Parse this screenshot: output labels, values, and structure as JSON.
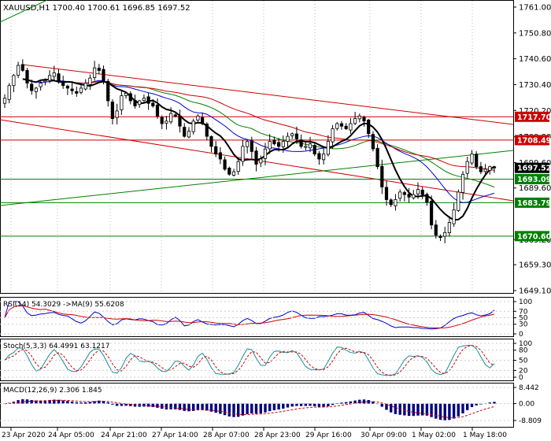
{
  "chart_data": {
    "type": "candlestick",
    "symbol_line": "XAUUSD,H1  1700.40 1700.61 1696.85 1697.52",
    "ohlc_current": {
      "open": 1700.4,
      "high": 1700.61,
      "low": 1696.85,
      "close": 1697.52
    },
    "price_axis": {
      "ylim": [
        1645,
        1765
      ],
      "ticks": [
        "1761.00",
        "1750.80",
        "1740.60",
        "1730.40",
        "1720.20",
        "1709.80",
        "1699.60",
        "1689.60",
        "1669.20",
        "1659.30",
        "1649.10"
      ],
      "tick_values": [
        1761.0,
        1750.8,
        1740.6,
        1730.4,
        1720.2,
        1709.8,
        1699.6,
        1689.6,
        1669.2,
        1659.3,
        1649.1
      ]
    },
    "price_labels": [
      {
        "text": "1717.70",
        "value": 1717.7,
        "color": "#cc0000"
      },
      {
        "text": "1708.49",
        "value": 1708.49,
        "color": "#cc0000"
      },
      {
        "text": "1697.52",
        "value": 1697.52,
        "color": "#000000"
      },
      {
        "text": "1693.09",
        "value": 1693.09,
        "color": "#008000"
      },
      {
        "text": "1683.79",
        "value": 1683.79,
        "color": "#008000"
      },
      {
        "text": "1670.60",
        "value": 1670.6,
        "color": "#008000"
      }
    ],
    "x_labels": [
      "23 Apr 2020",
      "24 Apr 05:00",
      "24 Apr 21:00",
      "27 Apr 14:00",
      "28 Apr 07:00",
      "28 Apr 23:00",
      "29 Apr 16:00",
      "30 Apr 09:00",
      "1 May 02:00",
      "1 May 18:00"
    ],
    "closes": [
      1725,
      1730,
      1734,
      1738,
      1736,
      1731,
      1728,
      1729,
      1731,
      1732,
      1734,
      1735,
      1732,
      1730,
      1729,
      1728,
      1727,
      1729,
      1731,
      1733,
      1737,
      1736,
      1732,
      1724,
      1717,
      1720,
      1726,
      1727,
      1724,
      1722,
      1724,
      1725,
      1723,
      1722,
      1718,
      1715,
      1716,
      1719,
      1718,
      1714,
      1710,
      1712,
      1716,
      1718,
      1715,
      1710,
      1706,
      1703,
      1701,
      1697,
      1695,
      1696,
      1700,
      1706,
      1708,
      1704,
      1699,
      1701,
      1705,
      1708,
      1707,
      1706,
      1708,
      1710,
      1711,
      1709,
      1706,
      1706,
      1707,
      1703,
      1701,
      1703,
      1708,
      1713,
      1715,
      1714,
      1713,
      1715,
      1717,
      1718,
      1716,
      1711,
      1705,
      1698,
      1690,
      1685,
      1683,
      1685,
      1688,
      1687,
      1686,
      1687,
      1689,
      1687,
      1684,
      1675,
      1671,
      1670,
      1672,
      1676,
      1681,
      1688,
      1695,
      1700,
      1703,
      1698,
      1696,
      1697,
      1698,
      1697.52
    ],
    "indicators": {
      "rsi": {
        "title": "RSI(14) 54.3029 ->MA(9) 55.6208",
        "axis": [
          "100",
          "70",
          "50",
          "30",
          "0"
        ],
        "levels": [
          100,
          70,
          50,
          30,
          0
        ]
      },
      "stoch": {
        "title": "Stoch(5,3,3) 64.4991 63.1217",
        "axis": [
          "100",
          "80",
          "50",
          "20",
          "0"
        ],
        "levels": [
          100,
          80,
          50,
          20,
          0
        ]
      },
      "macd": {
        "title": "MACD(12,26,9) 2.306 1.845",
        "axis": [
          "8.442",
          "0.00",
          "-8.809"
        ],
        "levels": [
          8.442,
          0,
          -8.809
        ]
      }
    },
    "colors": {
      "bull": "#ffffff",
      "bear": "#000000",
      "ma_fast": "#000000",
      "ma_mid": "#0000cc",
      "ma_slow": "#008000",
      "ma_red": "#cc0000",
      "support": "#008000",
      "resistance": "#cc0000"
    }
  }
}
